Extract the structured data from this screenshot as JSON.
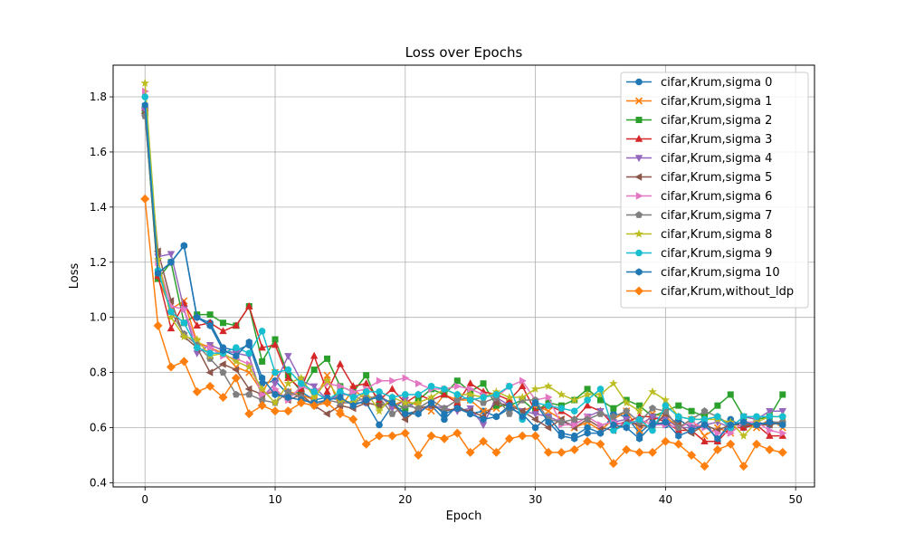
{
  "chart_data": {
    "type": "line",
    "title": "Loss over Epochs",
    "xlabel": "Epoch",
    "ylabel": "Loss",
    "xlim": [
      -2.45,
      51.45
    ],
    "ylim": [
      0.385,
      1.915
    ],
    "xticks": [
      0,
      10,
      20,
      30,
      40,
      50
    ],
    "yticks": [
      0.4,
      0.6,
      0.8,
      1.0,
      1.2,
      1.4,
      1.6,
      1.8
    ],
    "ytick_labels": [
      "0.4",
      "0.6",
      "0.8",
      "1.0",
      "1.2",
      "1.4",
      "1.6",
      "1.8"
    ],
    "grid": true,
    "legend_position": "upper right",
    "x": [
      0,
      1,
      2,
      3,
      4,
      5,
      6,
      7,
      8,
      9,
      10,
      11,
      12,
      13,
      14,
      15,
      16,
      17,
      18,
      19,
      20,
      21,
      22,
      23,
      24,
      25,
      26,
      27,
      28,
      29,
      30,
      31,
      32,
      33,
      34,
      35,
      36,
      37,
      38,
      39,
      40,
      41,
      42,
      43,
      44,
      45,
      46,
      47,
      48,
      49
    ],
    "series": [
      {
        "name": "cifar,Krum,sigma 0",
        "color": "#1f77b4",
        "marker": "circle",
        "values": [
          1.76,
          1.16,
          1.2,
          1.26,
          1.0,
          0.98,
          0.89,
          0.88,
          0.9,
          0.76,
          0.77,
          0.72,
          0.73,
          0.7,
          0.71,
          0.7,
          0.69,
          0.69,
          0.61,
          0.68,
          0.65,
          0.66,
          0.68,
          0.63,
          0.68,
          0.65,
          0.66,
          0.64,
          0.67,
          0.65,
          0.6,
          0.64,
          0.58,
          0.57,
          0.6,
          0.58,
          0.65,
          0.64,
          0.58,
          0.62,
          0.61,
          0.63,
          0.6,
          0.63,
          0.55,
          0.63,
          0.6,
          0.62,
          0.61,
          0.62
        ]
      },
      {
        "name": "cifar,Krum,sigma 1",
        "color": "#ff7f0e",
        "marker": "x",
        "values": [
          1.75,
          1.14,
          1.03,
          1.06,
          0.91,
          0.89,
          0.87,
          0.82,
          0.8,
          0.73,
          0.8,
          0.73,
          0.72,
          0.7,
          0.79,
          0.67,
          0.74,
          0.7,
          0.72,
          0.68,
          0.7,
          0.68,
          0.66,
          0.72,
          0.7,
          0.7,
          0.66,
          0.67,
          0.69,
          0.66,
          0.68,
          0.66,
          0.63,
          0.6,
          0.62,
          0.59,
          0.63,
          0.66,
          0.59,
          0.65,
          0.64,
          0.6,
          0.63,
          0.57,
          0.6,
          0.58,
          0.62,
          0.6,
          0.63,
          0.6
        ]
      },
      {
        "name": "cifar,Krum,sigma 2",
        "color": "#2ca02c",
        "marker": "square",
        "values": [
          1.74,
          1.14,
          1.2,
          0.98,
          1.01,
          1.01,
          0.98,
          0.97,
          1.04,
          0.84,
          0.92,
          0.79,
          0.73,
          0.81,
          0.85,
          0.75,
          0.73,
          0.79,
          0.68,
          0.69,
          0.67,
          0.7,
          0.74,
          0.72,
          0.77,
          0.73,
          0.76,
          0.68,
          0.68,
          0.7,
          0.66,
          0.69,
          0.68,
          0.7,
          0.74,
          0.7,
          0.67,
          0.7,
          0.68,
          0.64,
          0.66,
          0.68,
          0.66,
          0.64,
          0.68,
          0.72,
          0.64,
          0.63,
          0.64,
          0.72
        ]
      },
      {
        "name": "cifar,Krum,sigma 3",
        "color": "#d62728",
        "marker": "triangle-up",
        "values": [
          1.76,
          1.15,
          0.96,
          1.05,
          0.97,
          0.98,
          0.95,
          0.97,
          1.04,
          0.89,
          0.9,
          0.78,
          0.74,
          0.86,
          0.73,
          0.83,
          0.75,
          0.76,
          0.7,
          0.74,
          0.69,
          0.72,
          0.7,
          0.72,
          0.69,
          0.76,
          0.73,
          0.72,
          0.7,
          0.75,
          0.66,
          0.68,
          0.66,
          0.63,
          0.68,
          0.66,
          0.61,
          0.62,
          0.64,
          0.64,
          0.62,
          0.59,
          0.59,
          0.55,
          0.55,
          0.6,
          0.6,
          0.61,
          0.57,
          0.57
        ]
      },
      {
        "name": "cifar,Krum,sigma 4",
        "color": "#9467bd",
        "marker": "triangle-down",
        "values": [
          1.75,
          1.22,
          1.23,
          1.03,
          0.87,
          0.9,
          0.88,
          0.87,
          0.86,
          0.71,
          0.76,
          0.86,
          0.77,
          0.75,
          0.7,
          0.72,
          0.72,
          0.69,
          0.72,
          0.67,
          0.7,
          0.66,
          0.68,
          0.67,
          0.66,
          0.67,
          0.61,
          0.71,
          0.68,
          0.66,
          0.65,
          0.64,
          0.62,
          0.61,
          0.64,
          0.66,
          0.62,
          0.63,
          0.61,
          0.64,
          0.63,
          0.6,
          0.6,
          0.61,
          0.62,
          0.6,
          0.64,
          0.63,
          0.66,
          0.66
        ]
      },
      {
        "name": "cifar,Krum,sigma 5",
        "color": "#8c564b",
        "marker": "triangle-left",
        "values": [
          1.74,
          1.24,
          1.06,
          0.93,
          0.89,
          0.8,
          0.83,
          0.81,
          0.74,
          0.72,
          0.73,
          0.7,
          0.72,
          0.68,
          0.65,
          0.68,
          0.67,
          0.69,
          0.68,
          0.69,
          0.63,
          0.67,
          0.68,
          0.66,
          0.67,
          0.66,
          0.64,
          0.69,
          0.68,
          0.66,
          0.63,
          0.6,
          0.63,
          0.6,
          0.63,
          0.6,
          0.59,
          0.62,
          0.61,
          0.6,
          0.65,
          0.61,
          0.58,
          0.61,
          0.59,
          0.61,
          0.61,
          0.61,
          0.61,
          0.62
        ]
      },
      {
        "name": "cifar,Krum,sigma 6",
        "color": "#e377c2",
        "marker": "triangle-right",
        "values": [
          1.82,
          1.2,
          1.04,
          1.03,
          0.9,
          0.89,
          0.86,
          0.85,
          0.83,
          0.72,
          0.74,
          0.7,
          0.75,
          0.73,
          0.76,
          0.75,
          0.73,
          0.74,
          0.77,
          0.77,
          0.78,
          0.76,
          0.74,
          0.74,
          0.75,
          0.74,
          0.72,
          0.71,
          0.75,
          0.77,
          0.7,
          0.71,
          0.61,
          0.61,
          0.64,
          0.61,
          0.62,
          0.61,
          0.63,
          0.61,
          0.61,
          0.6,
          0.62,
          0.6,
          0.58,
          0.58,
          0.62,
          0.62,
          0.59,
          0.58
        ]
      },
      {
        "name": "cifar,Krum,sigma 7",
        "color": "#7f7f7f",
        "marker": "pentagon",
        "values": [
          1.73,
          1.17,
          1.02,
          0.94,
          0.9,
          0.85,
          0.8,
          0.72,
          0.72,
          0.7,
          0.69,
          0.73,
          0.71,
          0.68,
          0.7,
          0.69,
          0.69,
          0.71,
          0.71,
          0.65,
          0.68,
          0.67,
          0.7,
          0.67,
          0.7,
          0.71,
          0.69,
          0.71,
          0.65,
          0.7,
          0.7,
          0.63,
          0.62,
          0.63,
          0.63,
          0.65,
          0.64,
          0.66,
          0.62,
          0.67,
          0.66,
          0.6,
          0.63,
          0.66,
          0.64,
          0.61,
          0.62,
          0.61,
          0.62,
          0.62
        ]
      },
      {
        "name": "cifar,Krum,sigma 8",
        "color": "#bcbd22",
        "marker": "star",
        "values": [
          1.85,
          1.21,
          1.0,
          0.93,
          0.92,
          0.86,
          0.87,
          0.84,
          0.82,
          0.74,
          0.69,
          0.76,
          0.78,
          0.71,
          0.77,
          0.7,
          0.69,
          0.73,
          0.66,
          0.71,
          0.69,
          0.69,
          0.71,
          0.74,
          0.72,
          0.72,
          0.71,
          0.73,
          0.71,
          0.71,
          0.74,
          0.75,
          0.72,
          0.7,
          0.72,
          0.72,
          0.76,
          0.69,
          0.66,
          0.73,
          0.7,
          0.64,
          0.63,
          0.63,
          0.63,
          0.62,
          0.57,
          0.62,
          0.64,
          0.64
        ]
      },
      {
        "name": "cifar,Krum,sigma 9",
        "color": "#17becf",
        "marker": "circle",
        "values": [
          1.8,
          1.17,
          1.02,
          0.98,
          0.89,
          0.87,
          0.87,
          0.89,
          0.87,
          0.95,
          0.8,
          0.81,
          0.76,
          0.73,
          0.7,
          0.73,
          0.71,
          0.73,
          0.73,
          0.71,
          0.72,
          0.72,
          0.75,
          0.74,
          0.72,
          0.7,
          0.71,
          0.72,
          0.75,
          0.63,
          0.69,
          0.68,
          0.67,
          0.66,
          0.7,
          0.74,
          0.59,
          0.61,
          0.63,
          0.59,
          0.68,
          0.64,
          0.63,
          0.63,
          0.64,
          0.6,
          0.64,
          0.64,
          0.64,
          0.64
        ]
      },
      {
        "name": "cifar,Krum,sigma 10",
        "color": "#1f77b4",
        "marker": "hexagon",
        "values": [
          1.77,
          1.16,
          1.2,
          1.26,
          1.0,
          0.97,
          0.88,
          0.86,
          0.91,
          0.78,
          0.72,
          0.71,
          0.7,
          0.69,
          0.7,
          0.71,
          0.68,
          0.7,
          0.71,
          0.69,
          0.65,
          0.65,
          0.69,
          0.65,
          0.67,
          0.65,
          0.63,
          0.64,
          0.68,
          0.64,
          0.69,
          0.62,
          0.57,
          0.56,
          0.58,
          0.58,
          0.61,
          0.6,
          0.56,
          0.61,
          0.62,
          0.57,
          0.59,
          0.61,
          0.56,
          0.61,
          0.62,
          0.61,
          0.62,
          0.61
        ]
      },
      {
        "name": "cifar,Krum,without_ldp",
        "color": "#ff7f0e",
        "marker": "diamond",
        "values": [
          1.43,
          0.97,
          0.82,
          0.84,
          0.73,
          0.75,
          0.71,
          0.78,
          0.65,
          0.68,
          0.66,
          0.66,
          0.69,
          0.68,
          0.69,
          0.65,
          0.63,
          0.54,
          0.57,
          0.57,
          0.58,
          0.5,
          0.57,
          0.56,
          0.58,
          0.51,
          0.55,
          0.51,
          0.56,
          0.57,
          0.57,
          0.51,
          0.51,
          0.52,
          0.55,
          0.54,
          0.47,
          0.52,
          0.51,
          0.51,
          0.55,
          0.54,
          0.5,
          0.46,
          0.52,
          0.54,
          0.46,
          0.54,
          0.52,
          0.51
        ]
      }
    ]
  }
}
